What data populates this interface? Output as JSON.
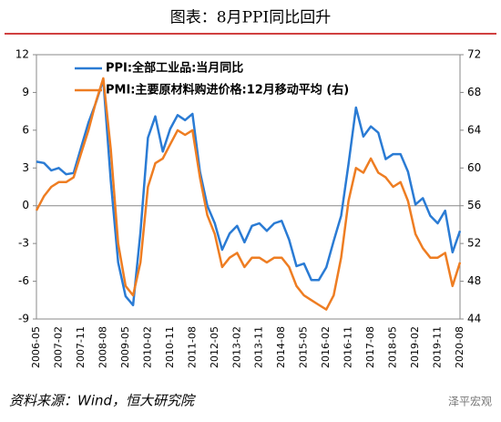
{
  "chart_data": {
    "type": "line",
    "title": "图表：8月PPI同比回升",
    "source": "资料来源：Wind，恒大研究院",
    "watermark": "泽平宏观",
    "categories": [
      "2006-05",
      null,
      null,
      "2007-02",
      null,
      null,
      "2007-11",
      null,
      null,
      "2008-08",
      null,
      null,
      "2009-05",
      null,
      null,
      "2010-02",
      null,
      null,
      "2010-11",
      null,
      null,
      "2011-08",
      null,
      null,
      "2012-05",
      null,
      null,
      "2013-02",
      null,
      null,
      "2013-11",
      null,
      null,
      "2014-08",
      null,
      null,
      "2015-05",
      null,
      null,
      "2016-02",
      null,
      null,
      "2016-11",
      null,
      null,
      "2017-08",
      null,
      null,
      "2018-05",
      null,
      null,
      "2019-02",
      null,
      null,
      "2019-11",
      null,
      null,
      "2020-08"
    ],
    "series": [
      {
        "name": "PPI:全部工业品:当月同比",
        "color": "#2a7bd4",
        "values": [
          3.5,
          3.4,
          2.8,
          3.0,
          2.5,
          2.6,
          4.6,
          6.6,
          8.2,
          10.0,
          2.0,
          -4.5,
          -7.2,
          -7.9,
          -2.1,
          5.4,
          7.1,
          4.3,
          6.1,
          7.2,
          6.8,
          7.3,
          2.7,
          0.0,
          -1.4,
          -3.5,
          -2.2,
          -1.6,
          -2.9,
          -1.6,
          -1.4,
          -2.0,
          -1.4,
          -1.2,
          -2.7,
          -4.8,
          -4.6,
          -5.9,
          -5.9,
          -4.9,
          -2.8,
          -0.8,
          3.3,
          7.8,
          5.5,
          6.3,
          5.8,
          3.7,
          4.1,
          4.1,
          2.7,
          0.1,
          0.6,
          -0.8,
          -1.4,
          -0.4,
          -3.7,
          -2.0
        ]
      },
      {
        "name": "PMI:主要原材料购进价格:12月移动平均 (右)",
        "color": "#ee7d22",
        "axis": "y2",
        "values": [
          55.5,
          57,
          58,
          58.5,
          58.5,
          59,
          61.5,
          64,
          67,
          69.5,
          62,
          52,
          47.5,
          46.5,
          50,
          58,
          60.5,
          61,
          62.5,
          64,
          63.5,
          64,
          59,
          55,
          53,
          49.5,
          50.5,
          51,
          49.5,
          50.5,
          50.5,
          50,
          50.5,
          50.5,
          49.5,
          47.5,
          46.5,
          46,
          45.5,
          45,
          46.5,
          50.5,
          56.5,
          60,
          59.5,
          61,
          59.5,
          59,
          58,
          58.5,
          56.5,
          53,
          51.5,
          50.5,
          50.5,
          51,
          47.5,
          50
        ]
      }
    ],
    "ylim": [
      -9,
      12
    ],
    "yticks": [
      -9,
      -6,
      -3,
      0,
      3,
      6,
      9,
      12
    ],
    "y2lim": [
      44,
      72
    ],
    "y2ticks": [
      44,
      48,
      52,
      56,
      60,
      64,
      68,
      72
    ]
  }
}
